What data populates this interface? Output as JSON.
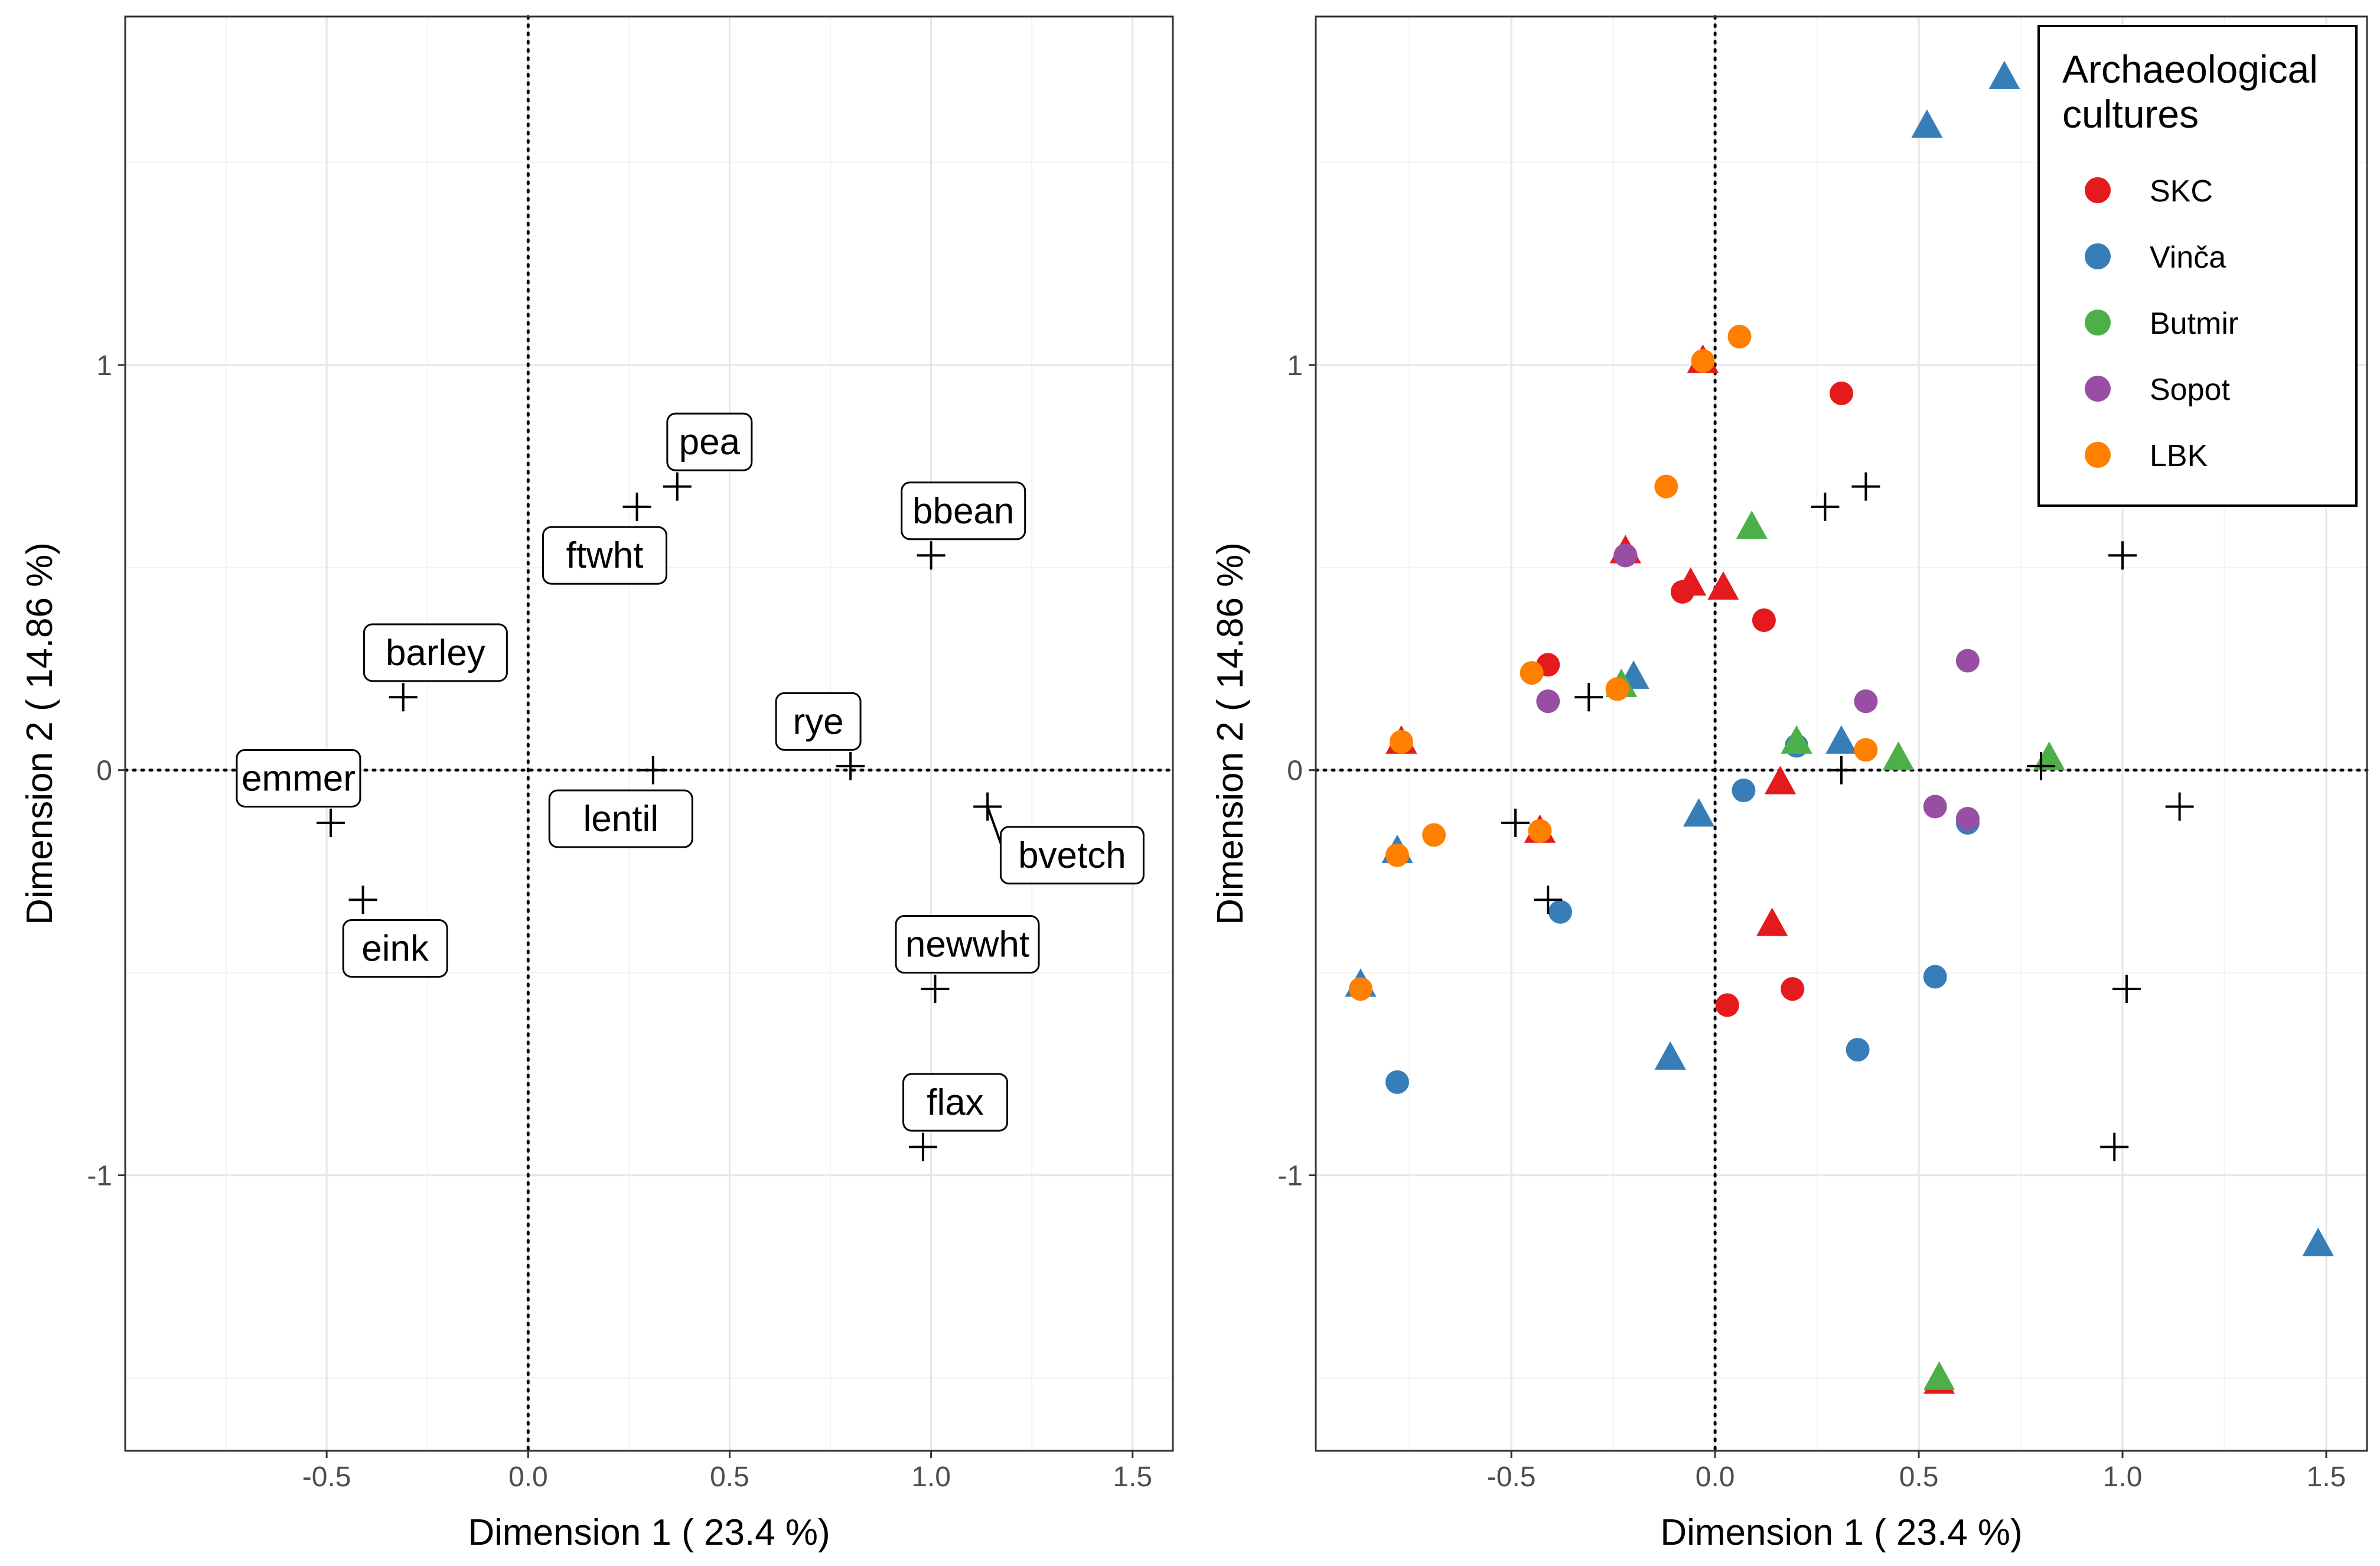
{
  "chart_data": [
    {
      "type": "scatter",
      "panel": "left",
      "xlabel": "Dimension 1 ( 23.4 %)",
      "ylabel": "Dimension 2 ( 14.86 %)",
      "xlim": [
        -1.0,
        1.6
      ],
      "ylim": [
        -1.68,
        1.86
      ],
      "xticks": [
        -0.5,
        0.0,
        0.5,
        1.0,
        1.5
      ],
      "xtick_labels": [
        "-0.5",
        "0.0",
        "0.5",
        "1.0",
        "1.5"
      ],
      "yticks": [
        -1,
        0,
        1
      ],
      "ytick_labels": [
        "-1",
        "0",
        "1"
      ],
      "xminor": [
        -0.75,
        -0.25,
        0.25,
        0.75,
        1.25
      ],
      "yminor": [
        -1.5,
        -0.5,
        0.5,
        1.5
      ],
      "grid": true,
      "reference_lines": {
        "x": 0,
        "y": 0,
        "style": "dotted"
      },
      "variables": [
        {
          "name": "pea",
          "x": 0.37,
          "y": 0.7,
          "label_x": 0.45,
          "label_y": 0.81
        },
        {
          "name": "ftwht",
          "x": 0.27,
          "y": 0.65,
          "label_x": 0.19,
          "label_y": 0.53
        },
        {
          "name": "bbean",
          "x": 1.0,
          "y": 0.53,
          "label_x": 1.08,
          "label_y": 0.64
        },
        {
          "name": "barley",
          "x": -0.31,
          "y": 0.18,
          "label_x": -0.23,
          "label_y": 0.29
        },
        {
          "name": "rye",
          "x": 0.8,
          "y": 0.01,
          "label_x": 0.72,
          "label_y": 0.12
        },
        {
          "name": "emmer",
          "x": -0.49,
          "y": -0.13,
          "label_x": -0.57,
          "label_y": -0.02
        },
        {
          "name": "lentil",
          "x": 0.31,
          "y": 0.0,
          "label_x": 0.23,
          "label_y": -0.12
        },
        {
          "name": "bvetch",
          "x": 1.14,
          "y": -0.09,
          "label_x": 1.35,
          "label_y": -0.21
        },
        {
          "name": "eink",
          "x": -0.41,
          "y": -0.32,
          "label_x": -0.33,
          "label_y": -0.44
        },
        {
          "name": "newwht",
          "x": 1.01,
          "y": -0.54,
          "label_x": 1.09,
          "label_y": -0.43
        },
        {
          "name": "flax",
          "x": 0.98,
          "y": -0.93,
          "label_x": 1.06,
          "label_y": -0.82
        }
      ]
    },
    {
      "type": "scatter",
      "panel": "right",
      "xlabel": "Dimension 1 ( 23.4 %)",
      "ylabel": "Dimension 2 ( 14.86 %)",
      "xlim": [
        -0.98,
        1.6
      ],
      "ylim": [
        -1.68,
        1.86
      ],
      "xticks": [
        -0.5,
        0.0,
        0.5,
        1.0,
        1.5
      ],
      "xtick_labels": [
        "-0.5",
        "0.0",
        "0.5",
        "1.0",
        "1.5"
      ],
      "yticks": [
        -1,
        0,
        1
      ],
      "ytick_labels": [
        "-1",
        "0",
        "1"
      ],
      "xminor": [
        -0.75,
        -0.25,
        0.25,
        0.75,
        1.25
      ],
      "yminor": [
        -1.5,
        -0.5,
        0.5,
        1.5
      ],
      "grid": true,
      "reference_lines": {
        "x": 0,
        "y": 0,
        "style": "dotted"
      },
      "legend": {
        "title_lines": [
          "Archaeological",
          "cultures"
        ],
        "placement": "top-right",
        "entries": [
          {
            "name": "SKC",
            "color": "#E41A1C"
          },
          {
            "name": "Vinča",
            "color": "#377EB8"
          },
          {
            "name": "Butmir",
            "color": "#4DAF4A"
          },
          {
            "name": "Sopot",
            "color": "#984EA3"
          },
          {
            "name": "LBK",
            "color": "#FF7F00"
          }
        ]
      },
      "variable_markers": [
        {
          "x": 0.27,
          "y": 0.65
        },
        {
          "x": 0.37,
          "y": 0.7
        },
        {
          "x": 1.0,
          "y": 0.53
        },
        {
          "x": -0.31,
          "y": 0.18
        },
        {
          "x": 0.8,
          "y": 0.01
        },
        {
          "x": 0.31,
          "y": 0.0
        },
        {
          "x": -0.49,
          "y": -0.13
        },
        {
          "x": 1.14,
          "y": -0.09
        },
        {
          "x": -0.41,
          "y": -0.32
        },
        {
          "x": 1.01,
          "y": -0.54
        },
        {
          "x": 0.98,
          "y": -0.93
        }
      ],
      "points": [
        {
          "culture": "SKC",
          "shape": "circle",
          "x": 0.31,
          "y": 0.93
        },
        {
          "culture": "SKC",
          "shape": "circle",
          "x": -0.22,
          "y": 0.53
        },
        {
          "culture": "SKC",
          "shape": "circle",
          "x": -0.08,
          "y": 0.44
        },
        {
          "culture": "SKC",
          "shape": "circle",
          "x": 0.12,
          "y": 0.37
        },
        {
          "culture": "SKC",
          "shape": "circle",
          "x": -0.41,
          "y": 0.26
        },
        {
          "culture": "SKC",
          "shape": "circle",
          "x": 0.03,
          "y": -0.58
        },
        {
          "culture": "SKC",
          "shape": "circle",
          "x": 0.19,
          "y": -0.54
        },
        {
          "culture": "SKC",
          "shape": "triangle",
          "x": -0.06,
          "y": 0.46
        },
        {
          "culture": "SKC",
          "shape": "triangle",
          "x": 0.02,
          "y": 0.45
        },
        {
          "culture": "SKC",
          "shape": "triangle",
          "x": 0.16,
          "y": -0.03
        },
        {
          "culture": "SKC",
          "shape": "triangle",
          "x": 0.14,
          "y": -0.38
        },
        {
          "culture": "SKC",
          "shape": "triangle",
          "x": -0.77,
          "y": 0.07
        },
        {
          "culture": "SKC",
          "shape": "triangle",
          "x": -0.43,
          "y": -0.15
        },
        {
          "culture": "SKC",
          "shape": "triangle",
          "x": -0.03,
          "y": 1.01
        },
        {
          "culture": "SKC",
          "shape": "triangle",
          "x": 0.55,
          "y": -1.51
        },
        {
          "culture": "SKC",
          "shape": "triangle",
          "x": -0.22,
          "y": 0.54
        },
        {
          "culture": "Vinča",
          "shape": "triangle",
          "x": 0.71,
          "y": 1.71
        },
        {
          "culture": "Vinča",
          "shape": "triangle",
          "x": 0.52,
          "y": 1.59
        },
        {
          "culture": "Vinča",
          "shape": "triangle",
          "x": 1.48,
          "y": -1.17
        },
        {
          "culture": "Vinča",
          "shape": "triangle",
          "x": -0.11,
          "y": -0.71
        },
        {
          "culture": "Vinča",
          "shape": "triangle",
          "x": -0.04,
          "y": -0.11
        },
        {
          "culture": "Vinča",
          "shape": "triangle",
          "x": -0.2,
          "y": 0.23
        },
        {
          "culture": "Vinča",
          "shape": "triangle",
          "x": 0.31,
          "y": 0.07
        },
        {
          "culture": "Vinča",
          "shape": "triangle",
          "x": -0.78,
          "y": -0.2
        },
        {
          "culture": "Vinča",
          "shape": "triangle",
          "x": -0.87,
          "y": -0.53
        },
        {
          "culture": "Vinča",
          "shape": "circle",
          "x": -0.78,
          "y": -0.77
        },
        {
          "culture": "Vinča",
          "shape": "circle",
          "x": 0.35,
          "y": -0.69
        },
        {
          "culture": "Vinča",
          "shape": "circle",
          "x": 0.54,
          "y": -0.51
        },
        {
          "culture": "Vinča",
          "shape": "circle",
          "x": 0.07,
          "y": -0.05
        },
        {
          "culture": "Vinča",
          "shape": "circle",
          "x": 0.2,
          "y": 0.06
        },
        {
          "culture": "Vinča",
          "shape": "circle",
          "x": 0.62,
          "y": -0.13
        },
        {
          "culture": "Vinča",
          "shape": "circle",
          "x": -0.38,
          "y": -0.35
        },
        {
          "culture": "Butmir",
          "shape": "triangle",
          "x": 0.09,
          "y": 0.6
        },
        {
          "culture": "Butmir",
          "shape": "triangle",
          "x": 0.45,
          "y": 0.03
        },
        {
          "culture": "Butmir",
          "shape": "triangle",
          "x": 0.82,
          "y": 0.03
        },
        {
          "culture": "Butmir",
          "shape": "triangle",
          "x": 0.2,
          "y": 0.07
        },
        {
          "culture": "Butmir",
          "shape": "triangle",
          "x": -0.23,
          "y": 0.21
        },
        {
          "culture": "Butmir",
          "shape": "triangle",
          "x": 0.55,
          "y": -1.5
        },
        {
          "culture": "Sopot",
          "shape": "circle",
          "x": 0.62,
          "y": 0.27
        },
        {
          "culture": "Sopot",
          "shape": "circle",
          "x": 0.37,
          "y": 0.17
        },
        {
          "culture": "Sopot",
          "shape": "circle",
          "x": -0.41,
          "y": 0.17
        },
        {
          "culture": "Sopot",
          "shape": "circle",
          "x": 0.54,
          "y": -0.09
        },
        {
          "culture": "Sopot",
          "shape": "circle",
          "x": -0.22,
          "y": 0.53
        },
        {
          "culture": "Sopot",
          "shape": "circle",
          "x": 0.62,
          "y": -0.12
        },
        {
          "culture": "LBK",
          "shape": "circle",
          "x": 0.06,
          "y": 1.07
        },
        {
          "culture": "LBK",
          "shape": "circle",
          "x": -0.12,
          "y": 0.7
        },
        {
          "culture": "LBK",
          "shape": "circle",
          "x": -0.45,
          "y": 0.24
        },
        {
          "culture": "LBK",
          "shape": "circle",
          "x": -0.24,
          "y": 0.2
        },
        {
          "culture": "LBK",
          "shape": "circle",
          "x": 0.37,
          "y": 0.05
        },
        {
          "culture": "LBK",
          "shape": "circle",
          "x": -0.77,
          "y": 0.07
        },
        {
          "culture": "LBK",
          "shape": "circle",
          "x": -0.69,
          "y": -0.16
        },
        {
          "culture": "LBK",
          "shape": "circle",
          "x": -0.43,
          "y": -0.15
        },
        {
          "culture": "LBK",
          "shape": "circle",
          "x": -0.78,
          "y": -0.21
        },
        {
          "culture": "LBK",
          "shape": "circle",
          "x": -0.87,
          "y": -0.54
        },
        {
          "culture": "LBK",
          "shape": "circle",
          "x": -0.03,
          "y": 1.01
        }
      ]
    }
  ]
}
